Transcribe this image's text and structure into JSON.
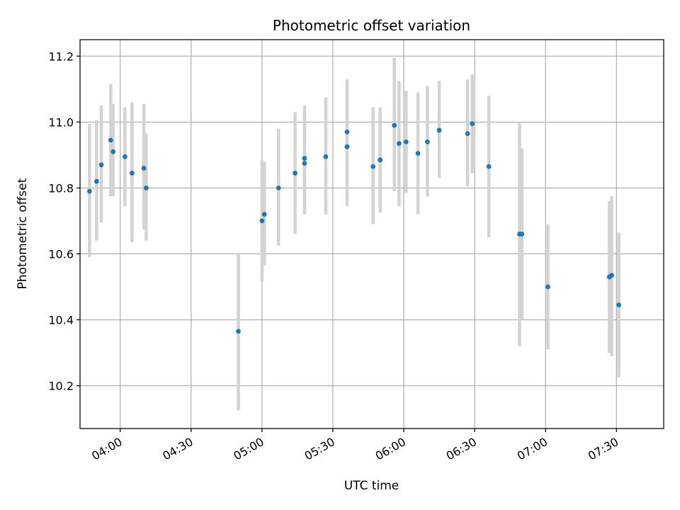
{
  "chart_data": {
    "type": "scatter",
    "title": "Photometric offset variation",
    "xlabel": "UTC time",
    "ylabel": "Photometric offset",
    "xlim": [
      "03:43",
      "07:50"
    ],
    "ylim": [
      10.07,
      11.25
    ],
    "x_ticks": [
      "04:00",
      "04:30",
      "05:00",
      "05:30",
      "06:00",
      "06:30",
      "07:00",
      "07:30"
    ],
    "y_ticks": [
      "10.2",
      "10.4",
      "10.6",
      "10.8",
      "11.0",
      "11.2"
    ],
    "grid": true,
    "colors": {
      "point": "#1f77b4",
      "errorbar": "#d3d3d3",
      "grid": "#b0b0b0"
    },
    "points": [
      {
        "x": "03:47",
        "y": 10.79,
        "yerr_low": 10.59,
        "yerr_high": 10.995
      },
      {
        "x": "03:50",
        "y": 10.82,
        "yerr_low": 10.64,
        "yerr_high": 11.005
      },
      {
        "x": "03:52",
        "y": 10.87,
        "yerr_low": 10.695,
        "yerr_high": 11.05
      },
      {
        "x": "03:56",
        "y": 10.945,
        "yerr_low": 10.775,
        "yerr_high": 11.115
      },
      {
        "x": "03:57",
        "y": 10.91,
        "yerr_low": 10.775,
        "yerr_high": 11.055
      },
      {
        "x": "04:02",
        "y": 10.895,
        "yerr_low": 10.745,
        "yerr_high": 11.045
      },
      {
        "x": "04:05",
        "y": 10.845,
        "yerr_low": 10.635,
        "yerr_high": 11.06
      },
      {
        "x": "04:10",
        "y": 10.86,
        "yerr_low": 10.675,
        "yerr_high": 11.055
      },
      {
        "x": "04:11",
        "y": 10.8,
        "yerr_low": 10.64,
        "yerr_high": 10.965
      },
      {
        "x": "04:50",
        "y": 10.365,
        "yerr_low": 10.125,
        "yerr_high": 10.6
      },
      {
        "x": "05:00",
        "y": 10.7,
        "yerr_low": 10.515,
        "yerr_high": 10.885
      },
      {
        "x": "05:01",
        "y": 10.72,
        "yerr_low": 10.565,
        "yerr_high": 10.88
      },
      {
        "x": "05:07",
        "y": 10.8,
        "yerr_low": 10.625,
        "yerr_high": 10.98
      },
      {
        "x": "05:14",
        "y": 10.845,
        "yerr_low": 10.66,
        "yerr_high": 11.03
      },
      {
        "x": "05:18",
        "y": 10.875,
        "yerr_low": 10.72,
        "yerr_high": 11.035
      },
      {
        "x": "05:18",
        "y": 10.89,
        "yerr_low": 10.73,
        "yerr_high": 11.05
      },
      {
        "x": "05:27",
        "y": 10.895,
        "yerr_low": 10.72,
        "yerr_high": 11.075
      },
      {
        "x": "05:36",
        "y": 10.925,
        "yerr_low": 10.745,
        "yerr_high": 11.11
      },
      {
        "x": "05:36",
        "y": 10.97,
        "yerr_low": 10.81,
        "yerr_high": 11.13
      },
      {
        "x": "05:47",
        "y": 10.865,
        "yerr_low": 10.69,
        "yerr_high": 11.045
      },
      {
        "x": "05:50",
        "y": 10.885,
        "yerr_low": 10.725,
        "yerr_high": 11.045
      },
      {
        "x": "05:56",
        "y": 10.99,
        "yerr_low": 10.79,
        "yerr_high": 11.195
      },
      {
        "x": "05:58",
        "y": 10.935,
        "yerr_low": 10.745,
        "yerr_high": 11.125
      },
      {
        "x": "06:01",
        "y": 10.94,
        "yerr_low": 10.785,
        "yerr_high": 11.095
      },
      {
        "x": "06:06",
        "y": 10.905,
        "yerr_low": 10.72,
        "yerr_high": 11.09
      },
      {
        "x": "06:10",
        "y": 10.94,
        "yerr_low": 10.775,
        "yerr_high": 11.11
      },
      {
        "x": "06:15",
        "y": 10.975,
        "yerr_low": 10.83,
        "yerr_high": 11.125
      },
      {
        "x": "06:27",
        "y": 10.965,
        "yerr_low": 10.805,
        "yerr_high": 11.13
      },
      {
        "x": "06:29",
        "y": 10.995,
        "yerr_low": 10.845,
        "yerr_high": 11.145
      },
      {
        "x": "06:36",
        "y": 10.865,
        "yerr_low": 10.65,
        "yerr_high": 11.08
      },
      {
        "x": "06:49",
        "y": 10.66,
        "yerr_low": 10.32,
        "yerr_high": 11.0
      },
      {
        "x": "06:50",
        "y": 10.66,
        "yerr_low": 10.4,
        "yerr_high": 10.92
      },
      {
        "x": "07:01",
        "y": 10.5,
        "yerr_low": 10.31,
        "yerr_high": 10.69
      },
      {
        "x": "07:27",
        "y": 10.53,
        "yerr_low": 10.35,
        "yerr_high": 10.71
      },
      {
        "x": "07:27",
        "y": 10.53,
        "yerr_low": 10.3,
        "yerr_high": 10.76
      },
      {
        "x": "07:28",
        "y": 10.535,
        "yerr_low": 10.29,
        "yerr_high": 10.775
      },
      {
        "x": "07:31",
        "y": 10.445,
        "yerr_low": 10.225,
        "yerr_high": 10.665
      }
    ]
  }
}
